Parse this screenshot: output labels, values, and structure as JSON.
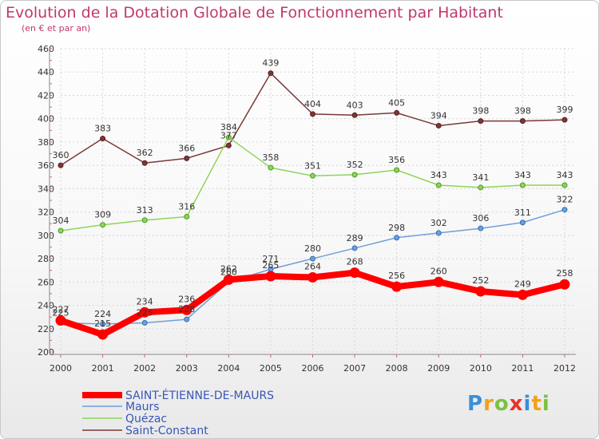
{
  "chart_data": {
    "type": "line",
    "title": "Evolution de la Dotation Globale de Fonctionnement par Habitant",
    "subtitle": "(en € et par an)",
    "xlabel": "",
    "ylabel": "",
    "x": [
      "2000",
      "2001",
      "2002",
      "2003",
      "2004",
      "2005",
      "2006",
      "2007",
      "2008",
      "2009",
      "2010",
      "2011",
      "2012"
    ],
    "ylim": [
      200,
      460
    ],
    "yticks": [
      "200",
      "220",
      "240",
      "260",
      "280",
      "300",
      "320",
      "340",
      "360",
      "380",
      "400",
      "420",
      "440",
      "460"
    ],
    "grid": true,
    "legend_position": "bottom-left",
    "series": [
      {
        "name": "SAINT-ÉTIENNE-DE-MAURS",
        "color": "#ff0000",
        "values": [
          227,
          215,
          234,
          236,
          262,
          265,
          264,
          268,
          256,
          260,
          252,
          249,
          258
        ],
        "labels": [
          "227",
          "215",
          "234",
          "236",
          "262",
          "265",
          "264",
          "268",
          "256",
          "260",
          "252",
          "249",
          "258"
        ]
      },
      {
        "name": "Maurs",
        "color": "#6f9fd8",
        "values": [
          225,
          224,
          225,
          228,
          260,
          271,
          280,
          289,
          298,
          302,
          306,
          311,
          322
        ],
        "labels": [
          "225",
          "224",
          "225",
          "228",
          "260",
          "271",
          "280",
          "289",
          "298",
          "302",
          "306",
          "311",
          "322"
        ]
      },
      {
        "name": "Quézac",
        "color": "#8fd45a",
        "values": [
          304,
          309,
          313,
          316,
          384,
          358,
          351,
          352,
          356,
          343,
          341,
          343,
          343
        ],
        "labels": [
          "304",
          "309",
          "313",
          "316",
          "384",
          "358",
          "351",
          "352",
          "356",
          "343",
          "341",
          "343",
          "343"
        ]
      },
      {
        "name": "Saint-Constant",
        "color": "#7a3838",
        "values": [
          360,
          383,
          362,
          366,
          377,
          439,
          404,
          403,
          405,
          394,
          398,
          398,
          399
        ],
        "labels": [
          "360",
          "383",
          "362",
          "366",
          "377",
          "439",
          "404",
          "403",
          "405",
          "394",
          "398",
          "398",
          "399"
        ]
      }
    ]
  },
  "branding": {
    "logo_parts": [
      {
        "text": "P",
        "color": "#3a8fd8"
      },
      {
        "text": "r",
        "color": "#f2a11b"
      },
      {
        "text": "o",
        "color": "#7cc242"
      },
      {
        "text": "x",
        "color": "#e8332a"
      },
      {
        "text": "i",
        "color": "#3a8fd8"
      },
      {
        "text": "t",
        "color": "#f2a11b"
      },
      {
        "text": "i",
        "color": "#7cc242"
      }
    ]
  }
}
